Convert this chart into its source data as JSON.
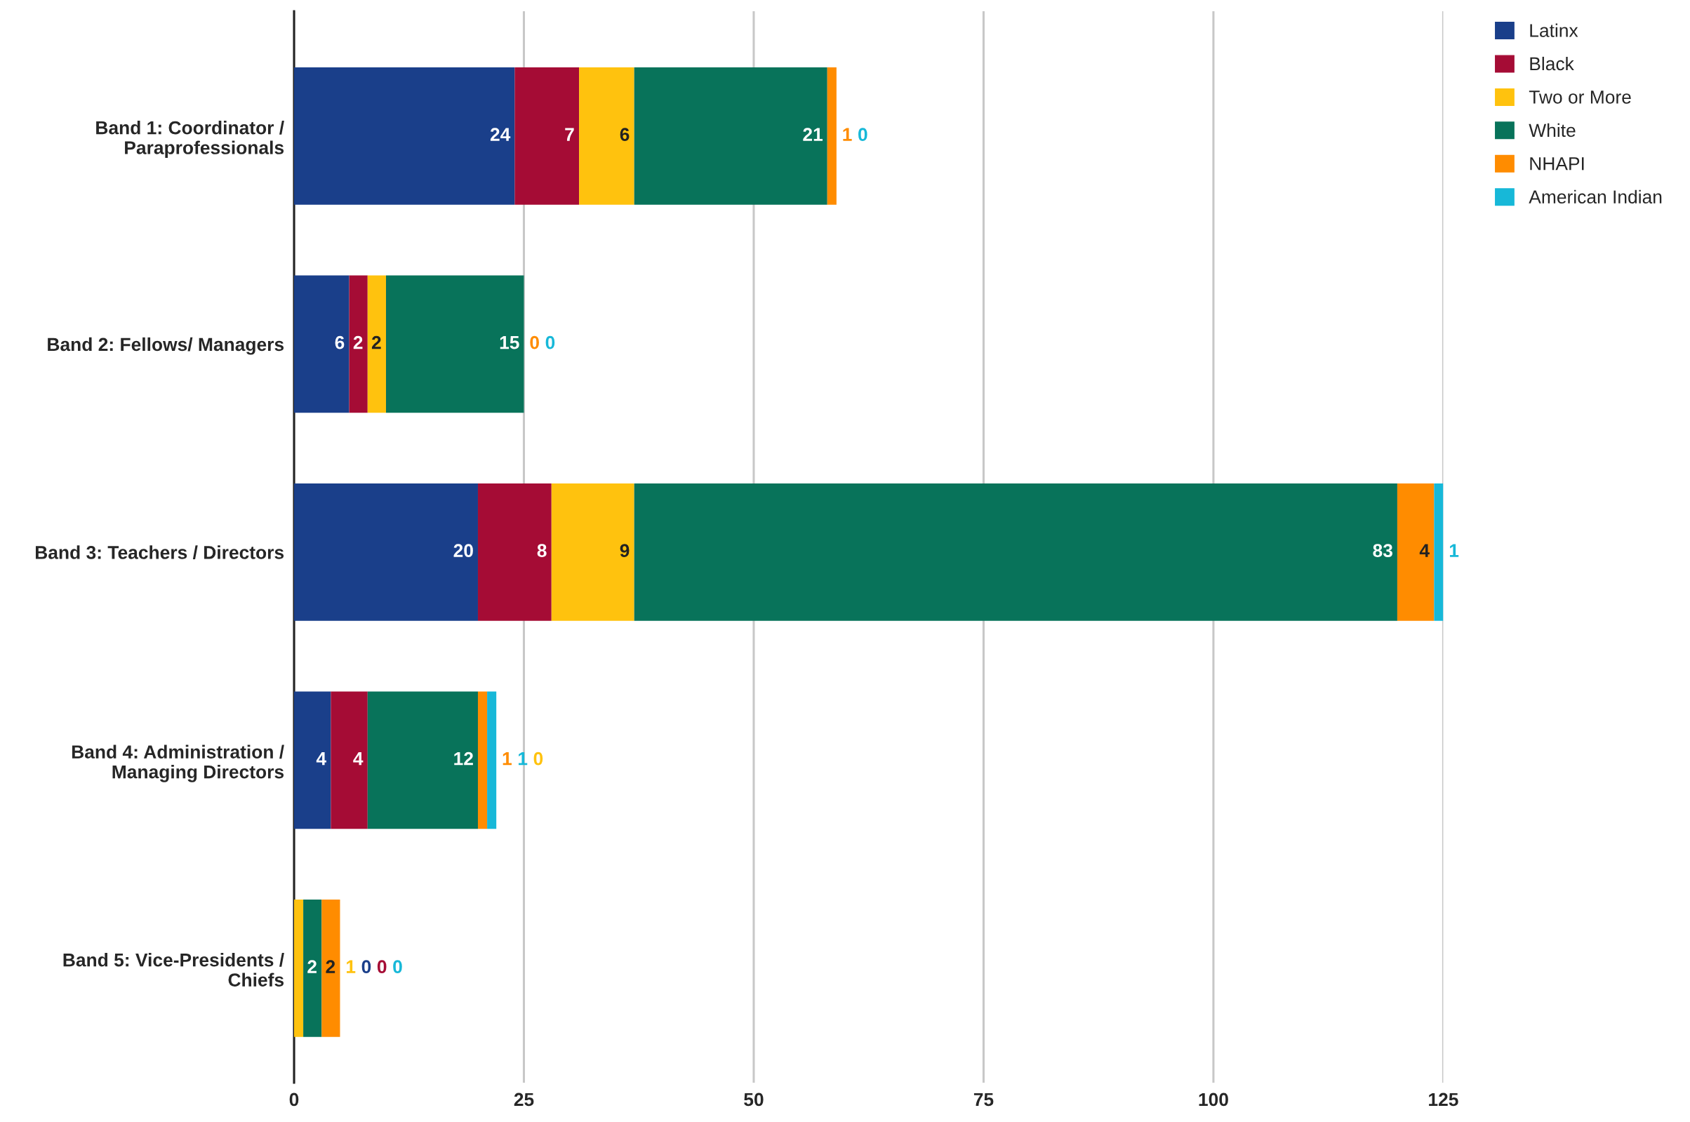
{
  "chart_data": {
    "type": "bar",
    "orientation": "horizontal",
    "stacked": true,
    "categories": [
      "Band 1: Coordinator /\nParaprofessionals",
      "Band 2: Fellows/ Managers",
      "Band 3: Teachers / Directors",
      "Band 4: Administration /\nManaging Directors",
      "Band 5: Vice-Presidents /\nChiefs"
    ],
    "series": [
      {
        "name": "Latinx",
        "color": "#1a3f8a",
        "values": [
          24,
          6,
          20,
          4,
          0
        ]
      },
      {
        "name": "Black",
        "color": "#a50c35",
        "values": [
          7,
          2,
          8,
          4,
          0
        ]
      },
      {
        "name": "Two or More",
        "color": "#ffc20e",
        "values": [
          6,
          2,
          9,
          0,
          1
        ]
      },
      {
        "name": "White",
        "color": "#08735a",
        "values": [
          21,
          15,
          83,
          12,
          2
        ]
      },
      {
        "name": "NHAPI",
        "color": "#ff8c00",
        "values": [
          1,
          0,
          4,
          1,
          2
        ]
      },
      {
        "name": "American Indian",
        "color": "#17b8d8",
        "values": [
          0,
          0,
          1,
          1,
          0
        ]
      }
    ],
    "xlim": [
      0,
      125
    ],
    "xticks": [
      0,
      25,
      50,
      75,
      100,
      125
    ],
    "grid": "x",
    "legend": "top right",
    "data_labels": true
  }
}
